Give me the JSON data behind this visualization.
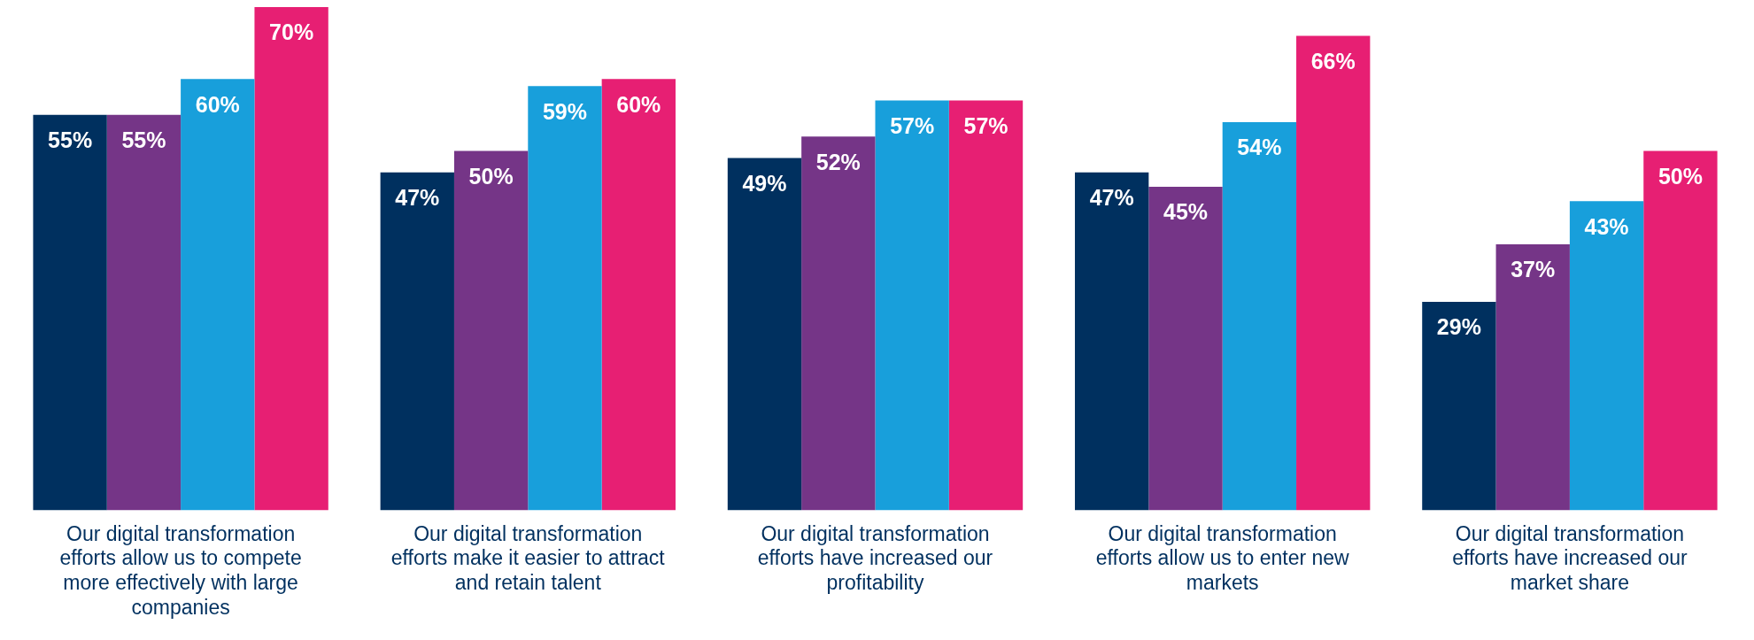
{
  "chart_data": {
    "type": "bar",
    "categories": [
      "Our digital transformation efforts allow us to compete more effectively with large companies",
      "Our digital transformation efforts make it easier to attract and retain talent",
      "Our digital transformation efforts have increased our profitability",
      "Our digital transformation efforts allow us to enter new markets",
      "Our digital transformation efforts have increased our market share"
    ],
    "series": [
      {
        "color": "#00305f",
        "values": [
          55,
          47,
          49,
          47,
          29
        ],
        "value_labels": [
          "55%",
          "47%",
          "49%",
          "47%",
          "29%"
        ]
      },
      {
        "color": "#753587",
        "values": [
          55,
          50,
          52,
          45,
          37
        ],
        "value_labels": [
          "55%",
          "50%",
          "52%",
          "45%",
          "37%"
        ]
      },
      {
        "color": "#189fdb",
        "values": [
          60,
          59,
          57,
          54,
          43
        ],
        "value_labels": [
          "60%",
          "59%",
          "57%",
          "54%",
          "43%"
        ]
      },
      {
        "color": "#e71f73",
        "values": [
          70,
          60,
          57,
          66,
          50
        ],
        "value_labels": [
          "70%",
          "60%",
          "57%",
          "66%",
          "50%"
        ]
      }
    ],
    "tick_labels": "x",
    "grid": false,
    "legend": false
  }
}
